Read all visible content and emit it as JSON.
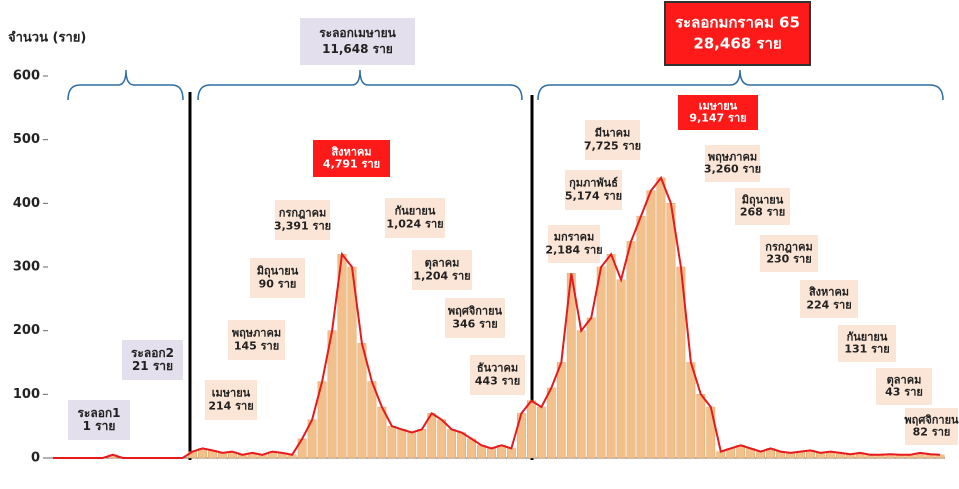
{
  "chart_data": {
    "type": "bar",
    "y_label": "จำนวน (ราย)",
    "ylim": [
      0,
      600
    ],
    "yticks": [
      0,
      100,
      200,
      300,
      400,
      500,
      600
    ],
    "color": "#f2c08a",
    "line_color": "#e8191c",
    "values": [
      0,
      0,
      0,
      0,
      0,
      0,
      5,
      0,
      0,
      0,
      0,
      0,
      0,
      0,
      10,
      15,
      12,
      8,
      10,
      5,
      8,
      5,
      10,
      8,
      5,
      30,
      60,
      120,
      200,
      320,
      300,
      180,
      120,
      80,
      50,
      45,
      40,
      45,
      70,
      60,
      45,
      40,
      30,
      20,
      15,
      20,
      15,
      70,
      90,
      80,
      110,
      150,
      290,
      200,
      220,
      300,
      320,
      280,
      340,
      380,
      420,
      440,
      400,
      300,
      150,
      100,
      80,
      10,
      15,
      20,
      15,
      10,
      15,
      10,
      8,
      10,
      12,
      8,
      10,
      8,
      6,
      8,
      5,
      5,
      6,
      5,
      5,
      8,
      6,
      5
    ],
    "annotations": [
      {
        "kind": "wave",
        "lines": [
          "ระลอกเมษายน",
          "11,648 ราย"
        ]
      },
      {
        "kind": "wave-main",
        "lines": [
          "ระลอกมกราคม 65",
          "28,468 ราย"
        ]
      },
      {
        "kind": "wave",
        "lines": [
          "ระลอก1",
          "1 ราย"
        ]
      },
      {
        "kind": "wave",
        "lines": [
          "ระลอก2",
          "21 ราย"
        ]
      },
      {
        "kind": "month",
        "lines": [
          "เมษายน",
          "214 ราย"
        ]
      },
      {
        "kind": "month",
        "lines": [
          "พฤษภาคม",
          "145 ราย"
        ]
      },
      {
        "kind": "month",
        "lines": [
          "มิถุนายน",
          "90 ราย"
        ]
      },
      {
        "kind": "month",
        "lines": [
          "กรกฎาคม",
          "3,391 ราย"
        ]
      },
      {
        "kind": "peak",
        "lines": [
          "สิงหาคม",
          "4,791 ราย"
        ]
      },
      {
        "kind": "month",
        "lines": [
          "กันยายน",
          "1,024 ราย"
        ]
      },
      {
        "kind": "month",
        "lines": [
          "ตุลาคม",
          "1,204 ราย"
        ]
      },
      {
        "kind": "month",
        "lines": [
          "พฤศจิกายน",
          "346 ราย"
        ]
      },
      {
        "kind": "month",
        "lines": [
          "ธันวาคม",
          "443 ราย"
        ]
      },
      {
        "kind": "month",
        "lines": [
          "มกราคม",
          "2,184 ราย"
        ]
      },
      {
        "kind": "month",
        "lines": [
          "กุมภาพันธ์",
          "5,174 ราย"
        ]
      },
      {
        "kind": "month",
        "lines": [
          "มีนาคม",
          "7,725 ราย"
        ]
      },
      {
        "kind": "peak",
        "lines": [
          "เมษายน",
          "9,147 ราย"
        ]
      },
      {
        "kind": "month",
        "lines": [
          "พฤษภาคม",
          "3,260 ราย"
        ]
      },
      {
        "kind": "month",
        "lines": [
          "มิถุนายน",
          "268 ราย"
        ]
      },
      {
        "kind": "month",
        "lines": [
          "กรกฎาคม",
          "230 ราย"
        ]
      },
      {
        "kind": "month",
        "lines": [
          "สิงหาคม",
          "224 ราย"
        ]
      },
      {
        "kind": "month",
        "lines": [
          "กันยายน",
          "131 ราย"
        ]
      },
      {
        "kind": "month",
        "lines": [
          "ตุลาคม",
          "43 ราย"
        ]
      },
      {
        "kind": "month",
        "lines": [
          "พฤศจิกายน",
          "82 ราย"
        ]
      }
    ]
  }
}
